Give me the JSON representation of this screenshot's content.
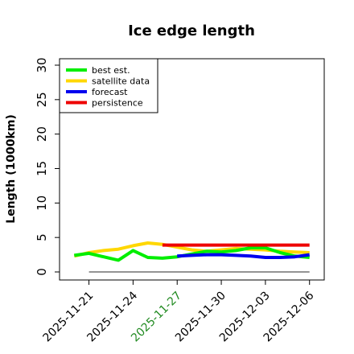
{
  "chart_data": {
    "type": "line",
    "title": "Ice edge length",
    "xlabel": "",
    "ylabel": "Length (1000km)",
    "ylim": [
      0,
      30
    ],
    "xlim": [
      "2025-11-19",
      "2025-12-07"
    ],
    "yticks": [
      0,
      5,
      10,
      15,
      20,
      25,
      30
    ],
    "xticks": [
      {
        "label": "2025-11-21",
        "date": "2025-11-21",
        "color": "#000000"
      },
      {
        "label": "2025-11-24",
        "date": "2025-11-24",
        "color": "#000000"
      },
      {
        "label": "2025-11-27",
        "date": "2025-11-27",
        "color": "#228b22"
      },
      {
        "label": "2025-11-30",
        "date": "2025-11-30",
        "color": "#000000"
      },
      {
        "label": "2025-12-03",
        "date": "2025-12-03",
        "color": "#000000"
      },
      {
        "label": "2025-12-06",
        "date": "2025-12-06",
        "color": "#000000"
      }
    ],
    "legend_position": "top-left",
    "grid": false,
    "series": [
      {
        "name": "best est.",
        "color": "#00ee00",
        "x": [
          "2025-11-20",
          "2025-11-21",
          "2025-11-22",
          "2025-11-23",
          "2025-11-24",
          "2025-11-25",
          "2025-11-26",
          "2025-11-27",
          "2025-11-28",
          "2025-11-29",
          "2025-11-30",
          "2025-12-01",
          "2025-12-02",
          "2025-12-03",
          "2025-12-04",
          "2025-12-05",
          "2025-12-06"
        ],
        "y": [
          2.4,
          2.7,
          2.2,
          1.7,
          3.1,
          2.1,
          2.0,
          2.2,
          2.6,
          3.0,
          2.9,
          3.1,
          3.5,
          3.5,
          2.8,
          2.3,
          2.1
        ]
      },
      {
        "name": "satellite data",
        "color": "#ffd700",
        "x": [
          "2025-11-20",
          "2025-11-21",
          "2025-11-22",
          "2025-11-23",
          "2025-11-24",
          "2025-11-25",
          "2025-11-26",
          "2025-11-27",
          "2025-11-28",
          "2025-11-29",
          "2025-11-30",
          "2025-12-01",
          "2025-12-02",
          "2025-12-03",
          "2025-12-04",
          "2025-12-05",
          "2025-12-06"
        ],
        "y": [
          2.3,
          2.8,
          3.1,
          3.3,
          3.8,
          4.2,
          4.0,
          3.6,
          3.2,
          3.0,
          3.2,
          3.4,
          3.3,
          3.2,
          3.0,
          2.9,
          2.8
        ]
      },
      {
        "name": "forecast",
        "color": "#0000ee",
        "x": [
          "2025-11-27",
          "2025-11-28",
          "2025-11-29",
          "2025-11-30",
          "2025-12-01",
          "2025-12-02",
          "2025-12-03",
          "2025-12-04",
          "2025-12-05",
          "2025-12-06"
        ],
        "y": [
          2.3,
          2.4,
          2.5,
          2.5,
          2.4,
          2.3,
          2.1,
          2.1,
          2.2,
          2.5
        ]
      },
      {
        "name": "persistence",
        "color": "#ee0000",
        "x": [
          "2025-11-26",
          "2025-11-27",
          "2025-11-28",
          "2025-11-29",
          "2025-11-30",
          "2025-12-01",
          "2025-12-02",
          "2025-12-03",
          "2025-12-04",
          "2025-12-05",
          "2025-12-06"
        ],
        "y": [
          3.9,
          3.9,
          3.9,
          3.9,
          3.9,
          3.9,
          3.9,
          3.9,
          3.9,
          3.9,
          3.9
        ]
      },
      {
        "name": "",
        "color": "#555555",
        "x": [
          "2025-11-21",
          "2025-12-06"
        ],
        "y": [
          0,
          0
        ]
      }
    ]
  }
}
